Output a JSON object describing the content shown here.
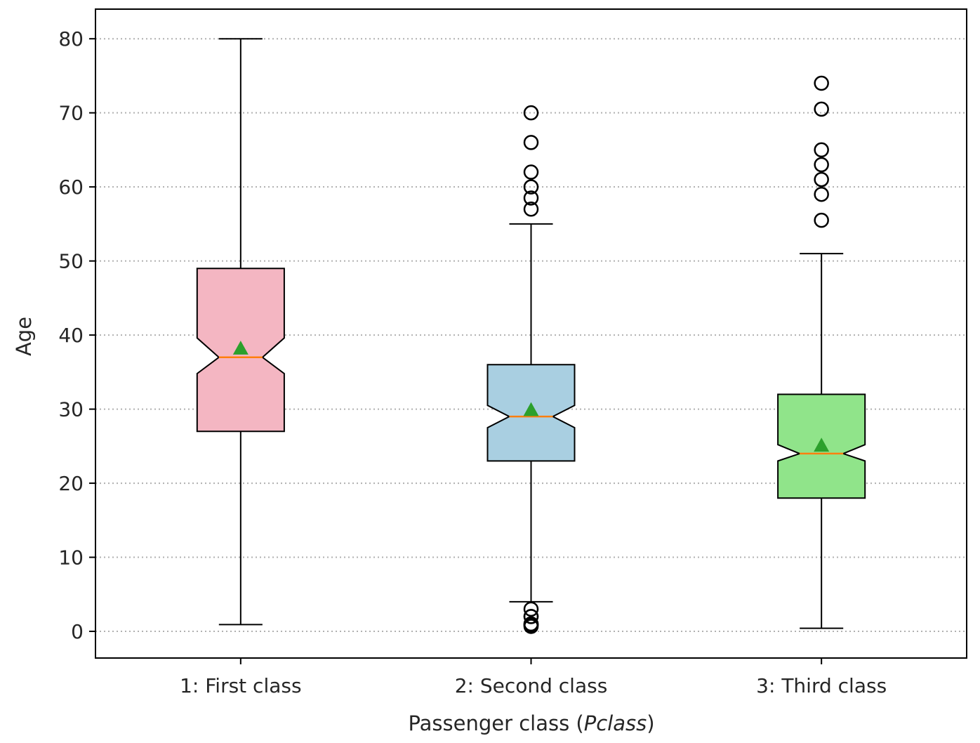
{
  "chart_data": {
    "type": "box",
    "title": "",
    "xlabel": "Passenger class (",
    "xlabel_italic": "Pclass",
    "xlabel_suffix": ")",
    "ylabel": "Age",
    "ylim": [
      -3.6,
      84
    ],
    "yticks": [
      0,
      10,
      20,
      30,
      40,
      50,
      60,
      70,
      80
    ],
    "grid": {
      "y": true,
      "style": "dotted"
    },
    "notched": true,
    "show_means": true,
    "categories": [
      "1: First class",
      "2: Second class",
      "3: Third class"
    ],
    "boxes": [
      {
        "name": "1: First class",
        "whisker_low": 0.92,
        "q1": 27,
        "median": 37,
        "q3": 49,
        "whisker_high": 80,
        "mean": 38.2,
        "notch_low": 34.8,
        "notch_high": 39.6,
        "outliers": [],
        "color": "#f4b6c2"
      },
      {
        "name": "2: Second class",
        "whisker_low": 4,
        "q1": 23,
        "median": 29,
        "q3": 36,
        "whisker_high": 55,
        "mean": 29.9,
        "notch_low": 27.5,
        "notch_high": 30.5,
        "outliers": [
          0.67,
          0.83,
          0.83,
          1,
          1,
          2,
          2,
          3,
          57,
          58.5,
          60,
          62,
          66,
          70
        ],
        "color": "#a9cfe1"
      },
      {
        "name": "3: Third class",
        "whisker_low": 0.42,
        "q1": 18,
        "median": 24,
        "q3": 32,
        "whisker_high": 51,
        "mean": 25.1,
        "notch_low": 23,
        "notch_high": 25.2,
        "outliers": [
          55.5,
          59,
          61,
          63,
          65,
          70.5,
          74
        ],
        "color": "#90e48a"
      }
    ],
    "median_color": "#ff7f0e",
    "mean_color": "#2ca02c"
  }
}
